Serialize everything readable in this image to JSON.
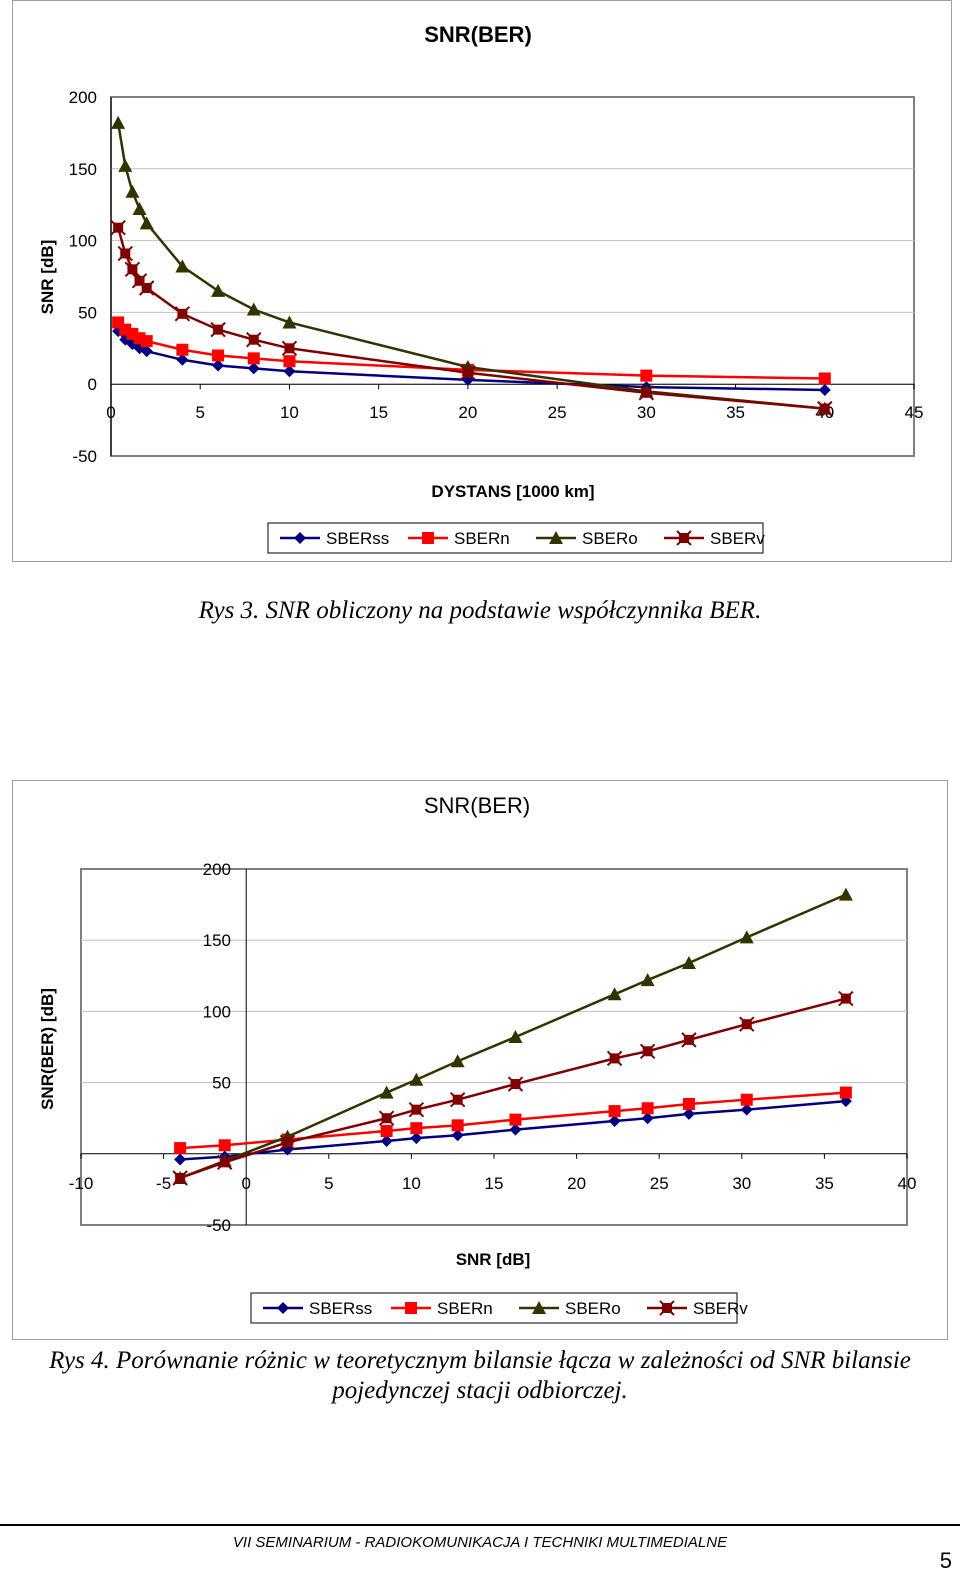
{
  "chart_data": [
    {
      "type": "line",
      "title": "SNR(BER)",
      "xlabel": "DYSTANS [1000 km]",
      "ylabel": "SNR [dB]",
      "xlim": [
        0,
        45
      ],
      "ylim": [
        -50,
        200
      ],
      "xticks": [
        0,
        5,
        10,
        15,
        20,
        25,
        30,
        35,
        40,
        45
      ],
      "yticks": [
        -50,
        0,
        50,
        100,
        150,
        200
      ],
      "grid": "horizontal",
      "legend_position": "bottom",
      "series": [
        {
          "name": "SBERss",
          "color": "#000080",
          "marker": "diamond",
          "x": [
            0.4,
            0.8,
            1.2,
            1.6,
            2.0,
            4.0,
            6.0,
            8.0,
            10.0,
            20.0,
            30.0,
            40.0
          ],
          "y": [
            37,
            31,
            28,
            25,
            23,
            17,
            13,
            11,
            9,
            3,
            -2,
            -4
          ]
        },
        {
          "name": "SBERn",
          "color": "#ff0000",
          "marker": "square",
          "x": [
            0.4,
            0.8,
            1.2,
            1.6,
            2.0,
            4.0,
            6.0,
            8.0,
            10.0,
            20.0,
            30.0,
            40.0
          ],
          "y": [
            43,
            38,
            35,
            32,
            30,
            24,
            20,
            18,
            16,
            10,
            6,
            4
          ]
        },
        {
          "name": "SBERo",
          "color": "#333300",
          "marker": "triangle",
          "x": [
            0.4,
            0.8,
            1.2,
            1.6,
            2.0,
            4.0,
            6.0,
            8.0,
            10.0,
            20.0,
            30.0,
            40.0
          ],
          "y": [
            182,
            152,
            134,
            122,
            112,
            82,
            65,
            52,
            43,
            12,
            -5,
            -17
          ]
        },
        {
          "name": "SBERv",
          "color": "#800000",
          "marker": "star",
          "x": [
            0.4,
            0.8,
            1.2,
            1.6,
            2.0,
            4.0,
            6.0,
            8.0,
            10.0,
            20.0,
            30.0,
            40.0
          ],
          "y": [
            109,
            91,
            80,
            72,
            67,
            49,
            38,
            31,
            25,
            8,
            -6,
            -17
          ]
        }
      ]
    },
    {
      "type": "line",
      "title": "SNR(BER)",
      "xlabel": "SNR [dB]",
      "ylabel": "SNR(BER) [dB]",
      "xlim": [
        -10,
        40
      ],
      "ylim": [
        -50,
        200
      ],
      "xticks": [
        -10,
        -5,
        0,
        5,
        10,
        15,
        20,
        25,
        30,
        35,
        40
      ],
      "yticks": [
        -50,
        50,
        100,
        150,
        200
      ],
      "grid": "horizontal",
      "legend_position": "bottom",
      "series": [
        {
          "name": "SBERss",
          "color": "#000080",
          "marker": "diamond",
          "x": [
            -4,
            -1.3,
            2.5,
            8.5,
            10.3,
            12.8,
            16.3,
            22.3,
            24.3,
            26.8,
            30.3,
            36.3
          ],
          "y": [
            -4,
            -2,
            3,
            9,
            11,
            13,
            17,
            23,
            25,
            28,
            31,
            37
          ]
        },
        {
          "name": "SBERn",
          "color": "#ff0000",
          "marker": "square",
          "x": [
            -4,
            -1.3,
            2.5,
            8.5,
            10.3,
            12.8,
            16.3,
            22.3,
            24.3,
            26.8,
            30.3,
            36.3
          ],
          "y": [
            4,
            6,
            10,
            16,
            18,
            20,
            24,
            30,
            32,
            35,
            38,
            43
          ]
        },
        {
          "name": "SBERo",
          "color": "#333300",
          "marker": "triangle",
          "x": [
            -4,
            -1.3,
            2.5,
            8.5,
            10.3,
            12.8,
            16.3,
            22.3,
            24.3,
            26.8,
            30.3,
            36.3
          ],
          "y": [
            -17,
            -5,
            12,
            43,
            52,
            65,
            82,
            112,
            122,
            134,
            152,
            182
          ]
        },
        {
          "name": "SBERv",
          "color": "#800000",
          "marker": "star",
          "x": [
            -4,
            -1.3,
            2.5,
            8.5,
            10.3,
            12.8,
            16.3,
            22.3,
            24.3,
            26.8,
            30.3,
            36.3
          ],
          "y": [
            -17,
            -6,
            8,
            25,
            31,
            38,
            49,
            67,
            72,
            80,
            91,
            109
          ]
        }
      ]
    }
  ],
  "captions": {
    "fig3": "Rys 3. SNR obliczony na podstawie współczynnika BER.",
    "fig4": "Rys 4. Porównanie różnic w teoretycznym bilansie łącza w zależności od SNR bilansie pojedynczej stacji odbiorczej."
  },
  "footer": {
    "text": "VII SEMINARIUM  -  RADIOKOMUNIKACJA I TECHNIKI  MULTIMEDIALNE",
    "page_number": "5"
  }
}
